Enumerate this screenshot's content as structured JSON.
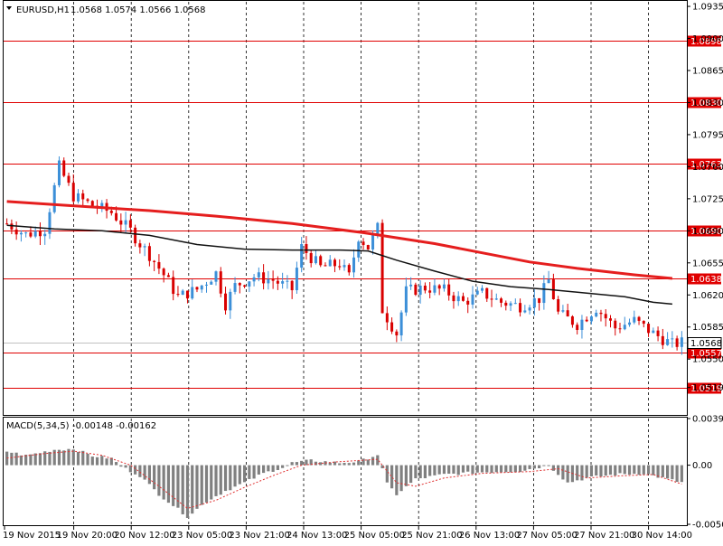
{
  "header": {
    "symbol": "EURUSD,H1",
    "ohlc": "1.0568 1.0574 1.0566 1.0568",
    "arrow": "dropdown-triangle"
  },
  "macd": {
    "label": "MACD(5,34,5)",
    "values": "-0.00148 -0.00162"
  },
  "colors": {
    "background": "#ffffff",
    "bull": "#3c8fd8",
    "bear": "#d90000",
    "level": "#e00000",
    "ma_slow": "#e51e1e",
    "ma_fast": "#111111",
    "grid": "#000000",
    "histogram": "#808080",
    "signal": "#e03030",
    "current_price_bg": "#ffffff"
  },
  "chart_data": [
    {
      "type": "candlestick",
      "title": "EURUSD,H1",
      "ylim": [
        1.049,
        1.094
      ],
      "y_ticks": [
        "1.0935",
        "1.0900",
        "1.0865",
        "1.0830",
        "1.0795",
        "1.0760",
        "1.0725",
        "1.0690",
        "1.0655",
        "1.0620",
        "1.0585",
        "1.0550",
        "1.0519"
      ],
      "x_ticks": [
        "19 Nov 2015",
        "19 Nov 20:00",
        "20 Nov 12:00",
        "23 Nov 05:00",
        "23 Nov 21:00",
        "24 Nov 13:00",
        "25 Nov 05:00",
        "25 Nov 21:00",
        "26 Nov 13:00",
        "27 Nov 05:00",
        "27 Nov 21:00",
        "30 Nov 14:00"
      ],
      "levels": [
        1.0898,
        1.083,
        1.0763,
        1.069,
        1.0638,
        1.0557,
        1.0519
      ],
      "level_labels": [
        "1.0898",
        "1.0830",
        "1.0763",
        "1.0690",
        "1.0638",
        "1.0557",
        "1.0519"
      ],
      "current_price": "1.0568",
      "current_price_value": 1.0568,
      "ma_slow": [
        [
          0,
          1.0722
        ],
        [
          12,
          1.0718
        ],
        [
          30,
          1.0712
        ],
        [
          44,
          1.0706
        ],
        [
          60,
          1.0698
        ],
        [
          75,
          1.0688
        ],
        [
          90,
          1.0676
        ],
        [
          100,
          1.0666
        ],
        [
          110,
          1.0656
        ],
        [
          120,
          1.0649
        ],
        [
          132,
          1.0642
        ],
        [
          140,
          1.0638
        ]
      ],
      "ma_fast": [
        [
          0,
          1.0696
        ],
        [
          10,
          1.0692
        ],
        [
          20,
          1.069
        ],
        [
          30,
          1.0685
        ],
        [
          40,
          1.0675
        ],
        [
          50,
          1.067
        ],
        [
          60,
          1.0669
        ],
        [
          70,
          1.0669
        ],
        [
          76,
          1.0668
        ],
        [
          82,
          1.0658
        ],
        [
          90,
          1.0646
        ],
        [
          98,
          1.0635
        ],
        [
          106,
          1.0629
        ],
        [
          114,
          1.0626
        ],
        [
          122,
          1.0622
        ],
        [
          130,
          1.0618
        ],
        [
          136,
          1.0612
        ],
        [
          140,
          1.061
        ]
      ],
      "waypoints": [
        [
          0,
          1.0698
        ],
        [
          4,
          1.0686
        ],
        [
          8,
          1.0692
        ],
        [
          11,
          1.076
        ],
        [
          14,
          1.0728
        ],
        [
          18,
          1.0718
        ],
        [
          22,
          1.071
        ],
        [
          26,
          1.069
        ],
        [
          28,
          1.0676
        ],
        [
          30,
          1.0664
        ],
        [
          33,
          1.0642
        ],
        [
          36,
          1.0618
        ],
        [
          40,
          1.0626
        ],
        [
          44,
          1.0644
        ],
        [
          46,
          1.061
        ],
        [
          48,
          1.063
        ],
        [
          52,
          1.064
        ],
        [
          56,
          1.0636
        ],
        [
          60,
          1.0626
        ],
        [
          62,
          1.0672
        ],
        [
          66,
          1.065
        ],
        [
          70,
          1.0654
        ],
        [
          72,
          1.064
        ],
        [
          74,
          1.0684
        ],
        [
          76,
          1.0672
        ],
        [
          78,
          1.0693
        ],
        [
          79,
          1.0604
        ],
        [
          82,
          1.0578
        ],
        [
          84,
          1.0624
        ],
        [
          88,
          1.0628
        ],
        [
          92,
          1.0625
        ],
        [
          96,
          1.0612
        ],
        [
          100,
          1.0622
        ],
        [
          104,
          1.0612
        ],
        [
          108,
          1.0608
        ],
        [
          112,
          1.0616
        ],
        [
          114,
          1.0636
        ],
        [
          116,
          1.06
        ],
        [
          120,
          1.0588
        ],
        [
          124,
          1.0606
        ],
        [
          128,
          1.0584
        ],
        [
          132,
          1.0592
        ],
        [
          136,
          1.0578
        ],
        [
          140,
          1.0566
        ],
        [
          142,
          1.0568
        ]
      ]
    },
    {
      "type": "histogram",
      "title": "MACD(5,34,5)",
      "ylim": [
        -0.00506,
        0.00399
      ],
      "y_ticks": [
        "0.00399",
        "0.00",
        "-0.00506"
      ],
      "waypoints": [
        [
          0,
          0.00118
        ],
        [
          4,
          0.00082
        ],
        [
          10,
          0.00132
        ],
        [
          14,
          0.0014
        ],
        [
          18,
          0.0008
        ],
        [
          22,
          0.00058
        ],
        [
          24,
          -0.0001
        ],
        [
          28,
          -0.0009
        ],
        [
          32,
          -0.0025
        ],
        [
          38,
          -0.0044
        ],
        [
          42,
          -0.0031
        ],
        [
          46,
          -0.0022
        ],
        [
          50,
          -0.0015
        ],
        [
          54,
          -0.0007
        ],
        [
          58,
          -0.0002
        ],
        [
          60,
          0.0002
        ],
        [
          64,
          0.0004
        ],
        [
          70,
          0.0002
        ],
        [
          74,
          0.0003
        ],
        [
          78,
          0.0009
        ],
        [
          80,
          -0.0016
        ],
        [
          82,
          -0.0025
        ],
        [
          86,
          -0.0012
        ],
        [
          92,
          -0.0008
        ],
        [
          100,
          -0.0006
        ],
        [
          108,
          -0.0005
        ],
        [
          114,
          0.0
        ],
        [
          118,
          -0.0015
        ],
        [
          122,
          -0.0011
        ],
        [
          128,
          -0.0008
        ],
        [
          134,
          -0.0007
        ],
        [
          140,
          -0.0013
        ],
        [
          142,
          -0.00148
        ]
      ],
      "signal": [
        [
          0,
          0.0006
        ],
        [
          8,
          0.001
        ],
        [
          14,
          0.0012
        ],
        [
          20,
          0.00085
        ],
        [
          26,
          0.0
        ],
        [
          32,
          -0.0018
        ],
        [
          38,
          -0.0037
        ],
        [
          44,
          -0.003
        ],
        [
          50,
          -0.0019
        ],
        [
          56,
          -0.0009
        ],
        [
          62,
          0.0
        ],
        [
          70,
          0.0003
        ],
        [
          78,
          0.0005
        ],
        [
          82,
          -0.0015
        ],
        [
          86,
          -0.0018
        ],
        [
          92,
          -0.0011
        ],
        [
          100,
          -0.0007
        ],
        [
          110,
          -0.00055
        ],
        [
          116,
          -0.0003
        ],
        [
          122,
          -0.0011
        ],
        [
          130,
          -0.0009
        ],
        [
          136,
          -0.0008
        ],
        [
          142,
          -0.00162
        ]
      ]
    }
  ]
}
